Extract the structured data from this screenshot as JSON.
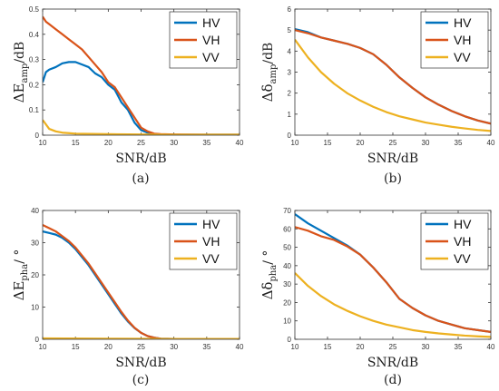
{
  "chart_data": [
    {
      "type": "line",
      "caption": "(a)",
      "xlabel": "SNR/dB",
      "ylabel": {
        "main": "ΔE",
        "sub": "amp",
        "tail": "/dB"
      },
      "xlim": [
        10,
        40
      ],
      "ylim": [
        0,
        0.5
      ],
      "xticks": [
        "10",
        "15",
        "20",
        "25",
        "30",
        "35",
        "40"
      ],
      "yticks": [
        "0",
        "0.1",
        "0.2",
        "0.3",
        "0.4",
        "0.5"
      ],
      "legend": "top-right",
      "series": [
        {
          "name": "HV",
          "color": "#0072BD",
          "x": [
            10,
            10.5,
            11,
            12,
            13,
            14,
            15,
            16,
            17,
            18,
            19,
            20,
            21,
            22,
            23,
            24,
            25,
            26,
            27,
            28,
            30,
            35,
            40
          ],
          "y": [
            0.21,
            0.25,
            0.26,
            0.27,
            0.285,
            0.29,
            0.29,
            0.28,
            0.27,
            0.245,
            0.23,
            0.2,
            0.18,
            0.13,
            0.1,
            0.05,
            0.02,
            0.01,
            0.005,
            0.003,
            0.002,
            0.002,
            0.002
          ]
        },
        {
          "name": "VH",
          "color": "#D95319",
          "x": [
            10,
            10.5,
            11,
            12,
            13,
            14,
            15,
            16,
            17,
            18,
            19,
            20,
            21,
            22,
            23,
            24,
            25,
            26,
            27,
            28,
            30,
            35,
            40
          ],
          "y": [
            0.47,
            0.45,
            0.44,
            0.42,
            0.4,
            0.38,
            0.36,
            0.34,
            0.31,
            0.28,
            0.25,
            0.21,
            0.19,
            0.15,
            0.11,
            0.07,
            0.03,
            0.015,
            0.006,
            0.004,
            0.003,
            0.002,
            0.002
          ]
        },
        {
          "name": "VV",
          "color": "#EDB120",
          "x": [
            10,
            10.3,
            11,
            12,
            13,
            14,
            15,
            20,
            25,
            30,
            35,
            40
          ],
          "y": [
            0.06,
            0.05,
            0.025,
            0.015,
            0.01,
            0.008,
            0.006,
            0.004,
            0.003,
            0.002,
            0.002,
            0.002
          ]
        }
      ]
    },
    {
      "type": "line",
      "caption": "(b)",
      "xlabel": "SNR/dB",
      "ylabel": {
        "main": "Δδ",
        "sub": "amp",
        "tail": "/dB"
      },
      "xlim": [
        10,
        40
      ],
      "ylim": [
        0,
        6
      ],
      "xticks": [
        "10",
        "15",
        "20",
        "25",
        "30",
        "35",
        "40"
      ],
      "yticks": [
        "0",
        "1",
        "2",
        "3",
        "4",
        "5",
        "6"
      ],
      "legend": "top-right",
      "series": [
        {
          "name": "HV",
          "color": "#0072BD",
          "x": [
            10,
            12,
            14,
            16,
            18,
            20,
            22,
            24,
            26,
            28,
            30,
            32,
            34,
            36,
            38,
            40
          ],
          "y": [
            5.05,
            4.9,
            4.65,
            4.5,
            4.35,
            4.15,
            3.85,
            3.35,
            2.75,
            2.25,
            1.8,
            1.45,
            1.15,
            0.9,
            0.7,
            0.55
          ]
        },
        {
          "name": "VH",
          "color": "#D95319",
          "x": [
            10,
            12,
            14,
            16,
            18,
            20,
            22,
            24,
            26,
            28,
            30,
            32,
            34,
            36,
            38,
            40
          ],
          "y": [
            5.0,
            4.85,
            4.65,
            4.5,
            4.35,
            4.15,
            3.85,
            3.35,
            2.75,
            2.25,
            1.8,
            1.45,
            1.15,
            0.9,
            0.7,
            0.55
          ]
        },
        {
          "name": "VV",
          "color": "#EDB120",
          "x": [
            10,
            12,
            14,
            16,
            18,
            20,
            22,
            24,
            26,
            28,
            30,
            32,
            34,
            36,
            38,
            40
          ],
          "y": [
            4.55,
            3.7,
            3.0,
            2.45,
            2.0,
            1.65,
            1.35,
            1.1,
            0.9,
            0.75,
            0.6,
            0.5,
            0.4,
            0.32,
            0.25,
            0.2
          ]
        }
      ]
    },
    {
      "type": "line",
      "caption": "(c)",
      "xlabel": "SNR/dB",
      "ylabel": {
        "main": "ΔE",
        "sub": "pha",
        "tail": "/ °"
      },
      "xlim": [
        10,
        40
      ],
      "ylim": [
        0,
        40
      ],
      "xticks": [
        "10",
        "15",
        "20",
        "25",
        "30",
        "35",
        "40"
      ],
      "yticks": [
        "0",
        "10",
        "20",
        "30",
        "40"
      ],
      "legend": "top-right",
      "series": [
        {
          "name": "HV",
          "color": "#0072BD",
          "x": [
            10,
            11,
            12,
            13,
            14,
            15,
            16,
            17,
            18,
            19,
            20,
            21,
            22,
            23,
            24,
            25,
            26,
            27,
            28,
            30,
            35,
            40
          ],
          "y": [
            33.5,
            33,
            32.5,
            31.5,
            30,
            28,
            25.5,
            23,
            20,
            17,
            14,
            11,
            8,
            5.5,
            3.5,
            2,
            1,
            0.5,
            0.2,
            0.1,
            0.1,
            0.1
          ]
        },
        {
          "name": "VH",
          "color": "#D95319",
          "x": [
            10,
            11,
            12,
            13,
            14,
            15,
            16,
            17,
            18,
            19,
            20,
            21,
            22,
            23,
            24,
            25,
            26,
            27,
            28,
            30,
            35,
            40
          ],
          "y": [
            35.5,
            34.5,
            33.5,
            32,
            30.5,
            28.5,
            26,
            23.5,
            20.5,
            17.5,
            14.5,
            11.5,
            8.5,
            5.8,
            3.6,
            2,
            1,
            0.5,
            0.2,
            0.1,
            0.1,
            0.1
          ]
        },
        {
          "name": "VV",
          "color": "#EDB120",
          "x": [
            10,
            20,
            30,
            40
          ],
          "y": [
            0.3,
            0.2,
            0.1,
            0.1
          ]
        }
      ]
    },
    {
      "type": "line",
      "caption": "(d)",
      "xlabel": "SNR/dB",
      "ylabel": {
        "main": "Δδ",
        "sub": "pha",
        "tail": "/ °"
      },
      "xlim": [
        10,
        40
      ],
      "ylim": [
        0,
        70
      ],
      "xticks": [
        "10",
        "15",
        "20",
        "25",
        "30",
        "35",
        "40"
      ],
      "yticks": [
        "0",
        "10",
        "20",
        "30",
        "40",
        "50",
        "60",
        "70"
      ],
      "legend": "top-right",
      "series": [
        {
          "name": "HV",
          "color": "#0072BD",
          "x": [
            10,
            12,
            14,
            16,
            18,
            20,
            22,
            24,
            26,
            28,
            30,
            32,
            34,
            36,
            38,
            40
          ],
          "y": [
            68,
            63,
            59,
            55,
            51,
            46,
            39,
            31,
            22,
            17,
            13,
            10,
            8,
            6,
            5,
            4
          ]
        },
        {
          "name": "VH",
          "color": "#D95319",
          "x": [
            10,
            12,
            14,
            16,
            18,
            20,
            22,
            24,
            26,
            28,
            30,
            32,
            34,
            36,
            38,
            40
          ],
          "y": [
            61,
            59,
            56,
            54,
            50.5,
            46,
            39,
            31,
            22,
            17,
            13,
            10,
            8,
            6,
            5,
            4
          ]
        },
        {
          "name": "VV",
          "color": "#EDB120",
          "x": [
            10,
            12,
            14,
            16,
            18,
            20,
            22,
            24,
            26,
            28,
            30,
            32,
            34,
            36,
            38,
            40
          ],
          "y": [
            36,
            29,
            23.5,
            19,
            15.5,
            12.5,
            10,
            8,
            6.5,
            5,
            4,
            3.2,
            2.6,
            2,
            1.6,
            1.3
          ]
        }
      ]
    }
  ]
}
